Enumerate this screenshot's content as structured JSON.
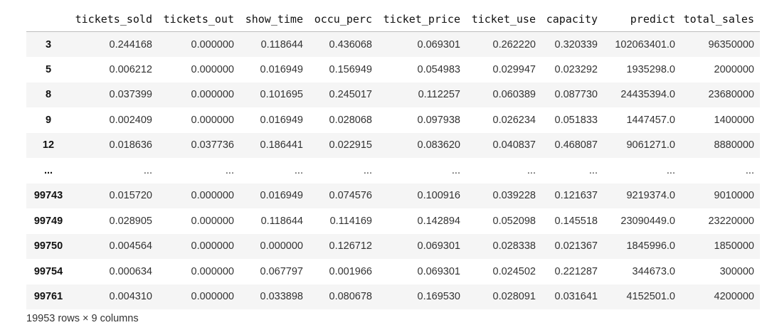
{
  "dataframe": {
    "index_header": "",
    "columns": [
      "tickets_sold",
      "tickets_out",
      "show_time",
      "occu_perc",
      "ticket_price",
      "ticket_use",
      "capacity",
      "predict",
      "total_sales"
    ],
    "rows": [
      {
        "index": "3",
        "cells": [
          "0.244168",
          "0.000000",
          "0.118644",
          "0.436068",
          "0.069301",
          "0.262220",
          "0.320339",
          "102063401.0",
          "96350000"
        ]
      },
      {
        "index": "5",
        "cells": [
          "0.006212",
          "0.000000",
          "0.016949",
          "0.156949",
          "0.054983",
          "0.029947",
          "0.023292",
          "1935298.0",
          "2000000"
        ]
      },
      {
        "index": "8",
        "cells": [
          "0.037399",
          "0.000000",
          "0.101695",
          "0.245017",
          "0.112257",
          "0.060389",
          "0.087730",
          "24435394.0",
          "23680000"
        ]
      },
      {
        "index": "9",
        "cells": [
          "0.002409",
          "0.000000",
          "0.016949",
          "0.028068",
          "0.097938",
          "0.026234",
          "0.051833",
          "1447457.0",
          "1400000"
        ]
      },
      {
        "index": "12",
        "cells": [
          "0.018636",
          "0.037736",
          "0.186441",
          "0.022915",
          "0.083620",
          "0.040837",
          "0.468087",
          "9061271.0",
          "8880000"
        ]
      },
      {
        "index": "...",
        "cells": [
          "...",
          "...",
          "...",
          "...",
          "...",
          "...",
          "...",
          "...",
          "..."
        ]
      },
      {
        "index": "99743",
        "cells": [
          "0.015720",
          "0.000000",
          "0.016949",
          "0.074576",
          "0.100916",
          "0.039228",
          "0.121637",
          "9219374.0",
          "9010000"
        ]
      },
      {
        "index": "99749",
        "cells": [
          "0.028905",
          "0.000000",
          "0.118644",
          "0.114169",
          "0.142894",
          "0.052098",
          "0.145518",
          "23090449.0",
          "23220000"
        ]
      },
      {
        "index": "99750",
        "cells": [
          "0.004564",
          "0.000000",
          "0.000000",
          "0.126712",
          "0.069301",
          "0.028338",
          "0.021367",
          "1845996.0",
          "1850000"
        ]
      },
      {
        "index": "99754",
        "cells": [
          "0.000634",
          "0.000000",
          "0.067797",
          "0.001966",
          "0.069301",
          "0.024502",
          "0.221287",
          "344673.0",
          "300000"
        ]
      },
      {
        "index": "99761",
        "cells": [
          "0.004310",
          "0.000000",
          "0.033898",
          "0.080678",
          "0.169530",
          "0.028091",
          "0.031641",
          "4152501.0",
          "4200000"
        ]
      }
    ],
    "shape_text": "19953 rows × 9 columns"
  }
}
